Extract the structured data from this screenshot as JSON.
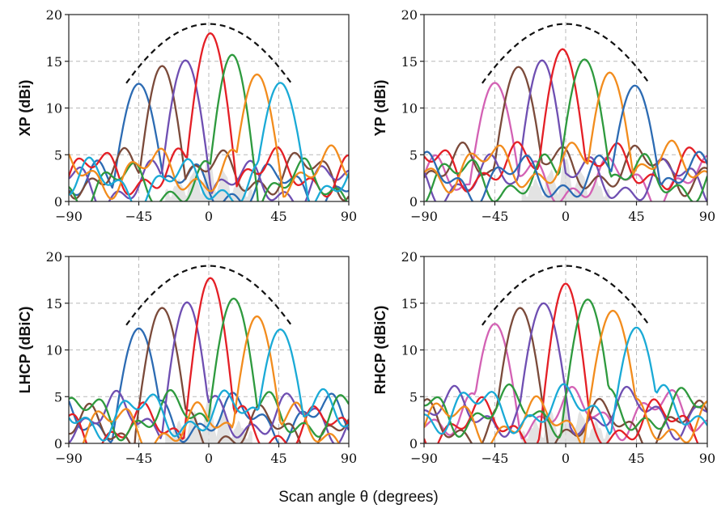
{
  "figure": {
    "xlabel": "Scan angle  θ  (degrees)"
  },
  "series_colors": [
    "#d361b4",
    "#2c6bb3",
    "#7b4a3a",
    "#6f4fb2",
    "#e41f26",
    "#2e9a3e",
    "#f28c1d",
    "#1aaad6"
  ],
  "chart_data": [
    {
      "type": "line",
      "panel": "top-left",
      "ylabel": "XP (dBi)",
      "xlim": [
        -90,
        90
      ],
      "ylim": [
        0,
        20
      ],
      "xticks": [
        -90,
        -45,
        0,
        45,
        90
      ],
      "yticks": [
        0,
        5,
        10,
        15,
        20
      ],
      "grid": true,
      "envelope_peak": 19,
      "series": [
        {
          "color": "#2c6bb3",
          "peak_angle": -45,
          "peak_gain": 12.6
        },
        {
          "color": "#7b4a3a",
          "peak_angle": -30,
          "peak_gain": 14.5
        },
        {
          "color": "#6f4fb2",
          "peak_angle": -15,
          "peak_gain": 15.1
        },
        {
          "color": "#e41f26",
          "peak_angle": 1,
          "peak_gain": 18.0
        },
        {
          "color": "#2e9a3e",
          "peak_angle": 15,
          "peak_gain": 15.7
        },
        {
          "color": "#f28c1d",
          "peak_angle": 31,
          "peak_gain": 13.6
        },
        {
          "color": "#1aaad6",
          "peak_angle": 46,
          "peak_gain": 12.7
        }
      ]
    },
    {
      "type": "line",
      "panel": "top-right",
      "ylabel": "YP (dBi)",
      "xlim": [
        -90,
        90
      ],
      "ylim": [
        0,
        20
      ],
      "xticks": [
        -90,
        -45,
        0,
        45,
        90
      ],
      "yticks": [
        0,
        5,
        10,
        15,
        20
      ],
      "grid": true,
      "envelope_peak": 19,
      "series": [
        {
          "color": "#d361b4",
          "peak_angle": -45,
          "peak_gain": 12.7
        },
        {
          "color": "#7b4a3a",
          "peak_angle": -30,
          "peak_gain": 14.4
        },
        {
          "color": "#6f4fb2",
          "peak_angle": -15,
          "peak_gain": 15.1
        },
        {
          "color": "#e41f26",
          "peak_angle": -2,
          "peak_gain": 16.3
        },
        {
          "color": "#2e9a3e",
          "peak_angle": 12,
          "peak_gain": 15.2
        },
        {
          "color": "#f28c1d",
          "peak_angle": 28,
          "peak_gain": 13.8
        },
        {
          "color": "#2c6bb3",
          "peak_angle": 44,
          "peak_gain": 12.4
        }
      ]
    },
    {
      "type": "line",
      "panel": "bottom-left",
      "ylabel": "LHCP (dBiC)",
      "xlim": [
        -90,
        90
      ],
      "ylim": [
        0,
        20
      ],
      "xticks": [
        -90,
        -45,
        0,
        45,
        90
      ],
      "yticks": [
        0,
        5,
        10,
        15,
        20
      ],
      "grid": true,
      "envelope_peak": 19,
      "series": [
        {
          "color": "#2c6bb3",
          "peak_angle": -45,
          "peak_gain": 12.3
        },
        {
          "color": "#7b4a3a",
          "peak_angle": -30,
          "peak_gain": 14.5
        },
        {
          "color": "#6f4fb2",
          "peak_angle": -14,
          "peak_gain": 15.1
        },
        {
          "color": "#e41f26",
          "peak_angle": 1,
          "peak_gain": 17.7
        },
        {
          "color": "#2e9a3e",
          "peak_angle": 16,
          "peak_gain": 15.5
        },
        {
          "color": "#f28c1d",
          "peak_angle": 31,
          "peak_gain": 13.6
        },
        {
          "color": "#1aaad6",
          "peak_angle": 46,
          "peak_gain": 12.2
        }
      ]
    },
    {
      "type": "line",
      "panel": "bottom-right",
      "ylabel": "RHCP (dBiC)",
      "xlim": [
        -90,
        90
      ],
      "ylim": [
        0,
        20
      ],
      "xticks": [
        -90,
        -45,
        0,
        45,
        90
      ],
      "yticks": [
        0,
        5,
        10,
        15,
        20
      ],
      "grid": true,
      "envelope_peak": 19,
      "series": [
        {
          "color": "#d361b4",
          "peak_angle": -45,
          "peak_gain": 12.8
        },
        {
          "color": "#7b4a3a",
          "peak_angle": -29,
          "peak_gain": 14.5
        },
        {
          "color": "#6f4fb2",
          "peak_angle": -14,
          "peak_gain": 15.0
        },
        {
          "color": "#e41f26",
          "peak_angle": 0,
          "peak_gain": 17.1
        },
        {
          "color": "#2e9a3e",
          "peak_angle": 14,
          "peak_gain": 15.4
        },
        {
          "color": "#f28c1d",
          "peak_angle": 30,
          "peak_gain": 14.2
        },
        {
          "color": "#1aaad6",
          "peak_angle": 45,
          "peak_gain": 12.4
        }
      ]
    }
  ]
}
